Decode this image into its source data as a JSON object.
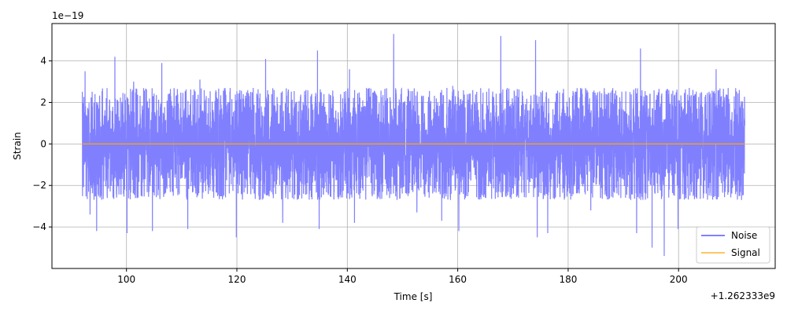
{
  "chart_data": {
    "type": "line",
    "title": "",
    "xlabel": "Time [s]",
    "ylabel": "Strain",
    "x_offset_label": "+1.262333e9",
    "y_scale_label": "1e−19",
    "xlim": [
      86.5,
      217.5
    ],
    "ylim": [
      -6.0,
      5.8
    ],
    "x_ticks": [
      100,
      120,
      140,
      160,
      180,
      200
    ],
    "x_tick_labels": [
      "100",
      "120",
      "140",
      "160",
      "180",
      "200"
    ],
    "y_ticks": [
      -4,
      -2,
      0,
      2,
      4
    ],
    "y_tick_labels": [
      "−4",
      "−2",
      "0",
      "2",
      "4"
    ],
    "grid": true,
    "legend_position": "lower-right",
    "series": [
      {
        "name": "Noise",
        "color": "#8080ff",
        "x_range": [
          92,
          212
        ],
        "typical_envelope": [
          -2.7,
          2.7
        ],
        "peaks": [
          {
            "x": 92.5,
            "y": 3.5
          },
          {
            "x": 93.4,
            "y": -3.4
          },
          {
            "x": 94.6,
            "y": -4.2
          },
          {
            "x": 97.9,
            "y": 4.2
          },
          {
            "x": 100.1,
            "y": -4.3
          },
          {
            "x": 101.3,
            "y": 3.0
          },
          {
            "x": 104.7,
            "y": -4.2
          },
          {
            "x": 106.4,
            "y": 3.9
          },
          {
            "x": 111.1,
            "y": -4.1
          },
          {
            "x": 113.3,
            "y": 3.1
          },
          {
            "x": 119.9,
            "y": -4.5
          },
          {
            "x": 125.2,
            "y": 4.1
          },
          {
            "x": 128.3,
            "y": -3.8
          },
          {
            "x": 134.6,
            "y": 4.5
          },
          {
            "x": 134.9,
            "y": -4.1
          },
          {
            "x": 140.4,
            "y": 3.6
          },
          {
            "x": 141.3,
            "y": -3.8
          },
          {
            "x": 148.4,
            "y": 5.3
          },
          {
            "x": 152.6,
            "y": -3.3
          },
          {
            "x": 157.1,
            "y": -3.7
          },
          {
            "x": 159.1,
            "y": 2.8
          },
          {
            "x": 160.2,
            "y": -4.2
          },
          {
            "x": 167.8,
            "y": 5.2
          },
          {
            "x": 174.1,
            "y": 5.0
          },
          {
            "x": 174.4,
            "y": -4.5
          },
          {
            "x": 176.3,
            "y": -4.3
          },
          {
            "x": 184.1,
            "y": -3.2
          },
          {
            "x": 192.4,
            "y": -4.3
          },
          {
            "x": 193.1,
            "y": 4.6
          },
          {
            "x": 195.2,
            "y": -5.0
          },
          {
            "x": 197.4,
            "y": -5.4
          },
          {
            "x": 199.9,
            "y": -4.1
          },
          {
            "x": 206.8,
            "y": 3.6
          },
          {
            "x": 211.0,
            "y": 2.6
          },
          {
            "x": 211.4,
            "y": -2.7
          }
        ]
      },
      {
        "name": "Signal",
        "color": "#ffa500",
        "x": [
          92,
          212
        ],
        "y": [
          0.0,
          0.0
        ]
      }
    ]
  }
}
